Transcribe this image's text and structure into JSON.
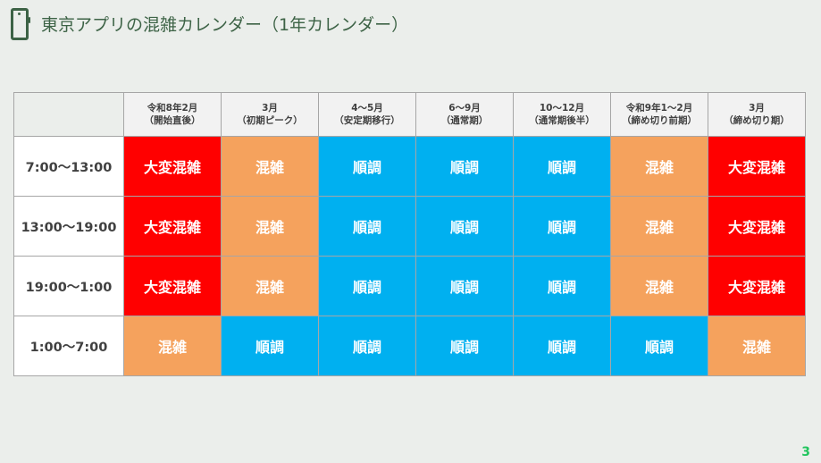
{
  "header": {
    "icon": "smartphone-icon",
    "title": "東京アプリの混雑カレンダー（1年カレンダー）"
  },
  "legend_colors": {
    "大変混雑": "#ff0000",
    "混雑": "#f5a25d",
    "順調": "#00b0f0"
  },
  "table": {
    "columns": [
      {
        "line1": "令和8年2月",
        "line2": "（開始直後）"
      },
      {
        "line1": "3月",
        "line2": "（初期ピーク）"
      },
      {
        "line1": "4～5月",
        "line2": "（安定期移行）"
      },
      {
        "line1": "6～9月",
        "line2": "（通常期）"
      },
      {
        "line1": "10～12月",
        "line2": "（通常期後半）"
      },
      {
        "line1": "令和9年1～2月",
        "line2": "（締め切り前期）"
      },
      {
        "line1": "3月",
        "line2": "（締め切り期）"
      }
    ],
    "rows": [
      {
        "time": "7:00～13:00",
        "cells": [
          "大変混雑",
          "混雑",
          "順調",
          "順調",
          "順調",
          "混雑",
          "大変混雑"
        ]
      },
      {
        "time": "13:00～19:00",
        "cells": [
          "大変混雑",
          "混雑",
          "順調",
          "順調",
          "順調",
          "混雑",
          "大変混雑"
        ]
      },
      {
        "time": "19:00～1:00",
        "cells": [
          "大変混雑",
          "混雑",
          "順調",
          "順調",
          "順調",
          "混雑",
          "大変混雑"
        ]
      },
      {
        "time": "1:00～7:00",
        "cells": [
          "混雑",
          "順調",
          "順調",
          "順調",
          "順調",
          "順調",
          "混雑"
        ]
      }
    ]
  },
  "footer": {
    "page_number": "3"
  }
}
